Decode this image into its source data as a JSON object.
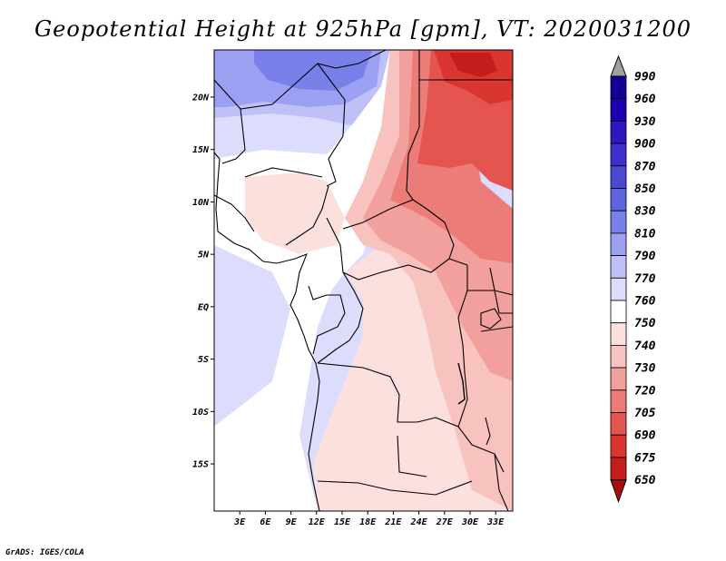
{
  "title": "Geopotential Height at 925hPa [gpm], VT: 2020031200",
  "credit": "GrADS: IGES/COLA",
  "map": {
    "region": "Central Africa",
    "lat_labels": [
      "20N",
      "15N",
      "10N",
      "5N",
      "EQ",
      "5S",
      "10S",
      "15S"
    ],
    "lat_values": [
      20,
      15,
      10,
      5,
      0,
      -5,
      -10,
      -15
    ],
    "lon_labels": [
      "3E",
      "6E",
      "9E",
      "12E",
      "15E",
      "18E",
      "21E",
      "24E",
      "27E",
      "30E",
      "33E"
    ],
    "lon_values": [
      3,
      6,
      9,
      12,
      15,
      18,
      21,
      24,
      27,
      30,
      33
    ],
    "lat_range": [
      -19.5,
      24.5
    ],
    "lon_range": [
      0,
      35
    ]
  },
  "colorbar": {
    "levels": [
      "990",
      "960",
      "930",
      "900",
      "870",
      "850",
      "830",
      "810",
      "790",
      "770",
      "760",
      "750",
      "740",
      "730",
      "720",
      "705",
      "690",
      "675",
      "650"
    ],
    "colors": [
      "#150096",
      "#1c00b0",
      "#2d17c0",
      "#3c2fcc",
      "#4c48d6",
      "#5e63e0",
      "#7a80ea",
      "#9ca0f2",
      "#bfc0f8",
      "#dcdcfc",
      "#ffffff",
      "#fce0de",
      "#f8c2bf",
      "#f2a09d",
      "#eb7c78",
      "#e45550",
      "#d93632",
      "#c51d1c",
      "#b00b0c"
    ]
  }
}
